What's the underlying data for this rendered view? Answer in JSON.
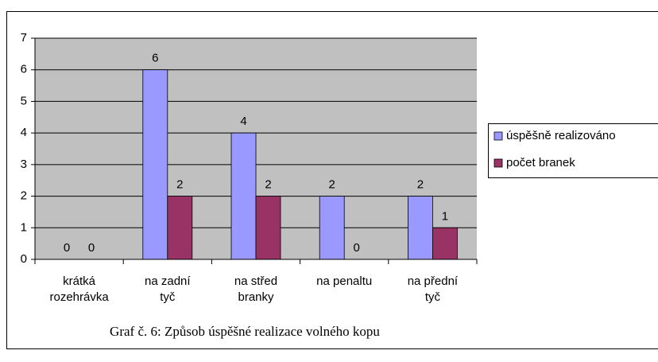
{
  "chart_data": {
    "type": "bar",
    "caption": "Graf č. 6: Způsob úspěšné realizace volného kopu",
    "categories": [
      [
        "krátká",
        "rozehrávka"
      ],
      [
        "na zadní",
        "tyč"
      ],
      [
        "na střed",
        "branky"
      ],
      [
        "na penaltu"
      ],
      [
        "na přední",
        "tyč"
      ]
    ],
    "series": [
      {
        "name": "úspěšně realizováno",
        "color": "#9999ff",
        "values": [
          0,
          6,
          4,
          2,
          2
        ]
      },
      {
        "name": "počet branek",
        "color": "#993366",
        "values": [
          0,
          2,
          2,
          0,
          1
        ]
      }
    ],
    "ylim": [
      0,
      7
    ],
    "yticks": [
      0,
      1,
      2,
      3,
      4,
      5,
      6,
      7
    ],
    "grid": true,
    "legend": "right"
  }
}
